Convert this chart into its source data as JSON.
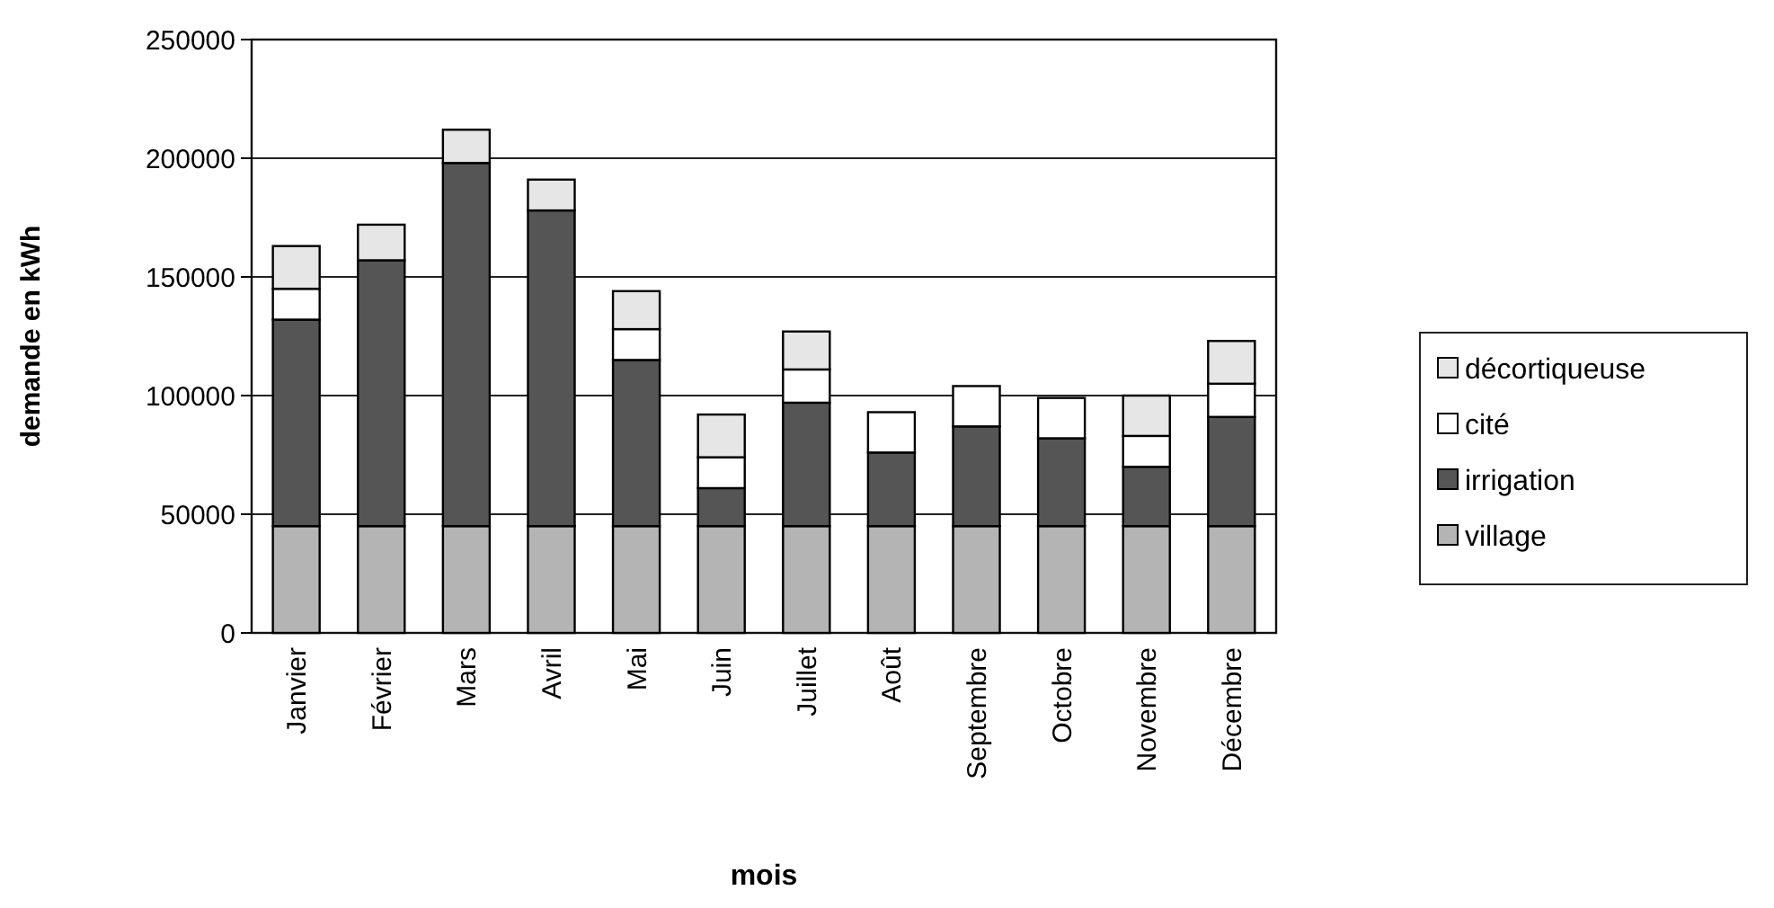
{
  "chart_data": {
    "type": "bar",
    "stacked": true,
    "xlabel": "mois",
    "ylabel": "demande en kWh",
    "categories": [
      "Janvier",
      "Février",
      "Mars",
      "Avril",
      "Mai",
      "Juin",
      "Juillet",
      "Août",
      "Septembre",
      "Octobre",
      "Novembre",
      "Décembre"
    ],
    "series": [
      {
        "name": "village",
        "color": "#b4b4b4",
        "values": [
          45000,
          45000,
          45000,
          45000,
          45000,
          45000,
          45000,
          45000,
          45000,
          45000,
          45000,
          45000
        ]
      },
      {
        "name": "irrigation",
        "color": "#555555",
        "values": [
          87000,
          112000,
          153000,
          133000,
          70000,
          16000,
          52000,
          31000,
          42000,
          37000,
          25000,
          46000
        ]
      },
      {
        "name": "cité",
        "color": "#ffffff",
        "values": [
          13000,
          0,
          0,
          0,
          13000,
          13000,
          14000,
          17000,
          17000,
          17000,
          13000,
          14000
        ]
      },
      {
        "name": "décortiqueuse",
        "color": "#e6e6e6",
        "values": [
          18000,
          15000,
          14000,
          13000,
          16000,
          18000,
          16000,
          0,
          0,
          0,
          17000,
          18000
        ]
      }
    ],
    "ylim": [
      0,
      250000
    ],
    "yticks": [
      0,
      50000,
      100000,
      150000,
      200000,
      250000
    ],
    "grid": "y",
    "legend": "right"
  }
}
